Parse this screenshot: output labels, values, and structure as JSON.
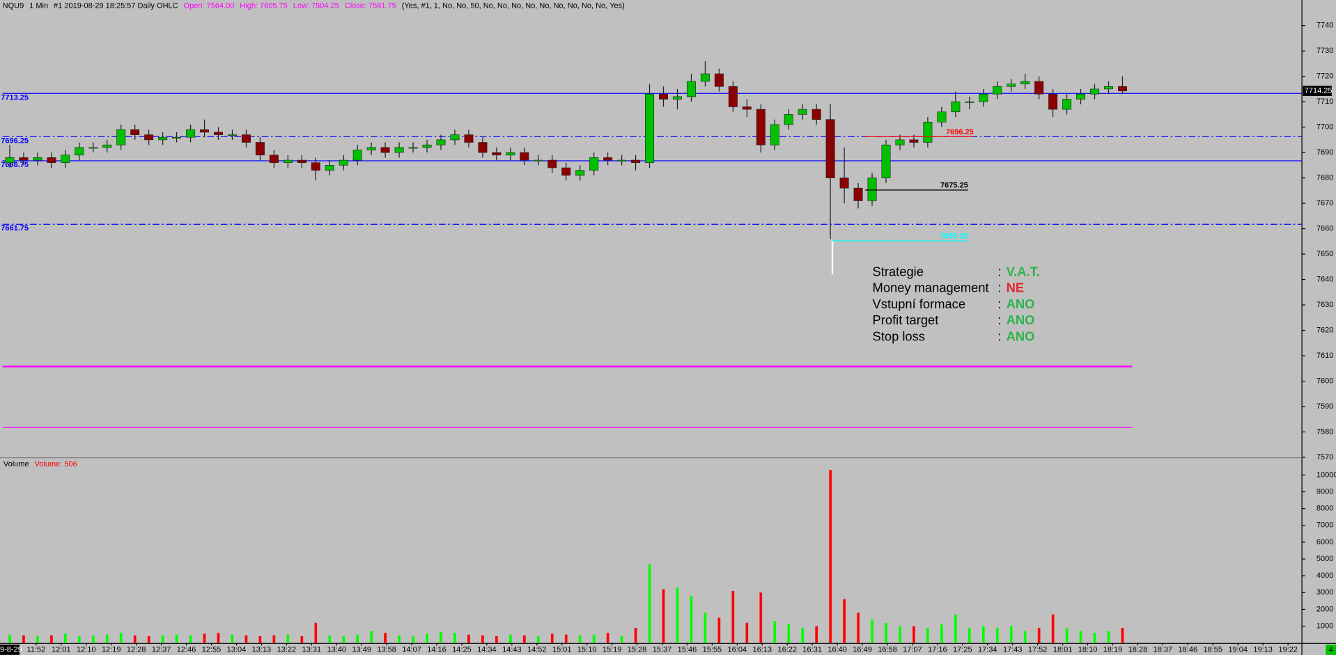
{
  "header": {
    "symbol": "NQU9",
    "interval": "1 Min",
    "info": "#1 2019-08-29 18:25:57 Daily OHLC",
    "ohlc": [
      "Open: 7564.00",
      "High: 7605.75",
      "Low: 7504.25",
      "Close: 7581.75"
    ],
    "params": "(Yes, #1, 1, No, No, 50, No, No, No, No, No, No, No, No, No, Yes)",
    "date_label": "9-8-29",
    "corner_badge": "4"
  },
  "chart_data": {
    "type": "candlestick",
    "x": [
      "11:40",
      "11:45",
      "11:50",
      "11:55",
      "12:00",
      "12:05",
      "12:10",
      "12:15",
      "12:20",
      "12:25",
      "12:30",
      "12:35",
      "12:40",
      "12:45",
      "12:50",
      "12:55",
      "13:00",
      "13:05",
      "13:10",
      "13:15",
      "13:20",
      "13:25",
      "13:30",
      "13:35",
      "13:40",
      "13:45",
      "13:50",
      "13:55",
      "14:00",
      "14:05",
      "14:10",
      "14:15",
      "14:20",
      "14:25",
      "14:30",
      "14:35",
      "14:40",
      "14:45",
      "14:50",
      "14:55",
      "15:00",
      "15:05",
      "15:10",
      "15:15",
      "15:20",
      "15:25",
      "15:30",
      "15:35",
      "15:40",
      "15:45",
      "15:50",
      "15:55",
      "16:00",
      "16:05",
      "16:10",
      "16:15",
      "16:20",
      "16:25",
      "16:30",
      "16:35",
      "16:40",
      "16:45",
      "16:50",
      "16:55",
      "17:00",
      "17:05",
      "17:10",
      "17:15",
      "17:20",
      "17:25",
      "17:30",
      "17:35",
      "17:40",
      "17:45",
      "17:50",
      "17:55",
      "18:00",
      "18:05",
      "18:10",
      "18:15",
      "18:20"
    ],
    "open": [
      7686,
      7688,
      7687,
      7688,
      7686,
      7689,
      7692,
      7692,
      7693,
      7699,
      7697,
      7695,
      7696,
      7696,
      7699,
      7698,
      7697,
      7697,
      7694,
      7689,
      7686,
      7687,
      7686,
      7683,
      7685,
      7687,
      7691,
      7692,
      7690,
      7692,
      7692,
      7693,
      7695,
      7697,
      7694,
      7690,
      7689,
      7690,
      7687,
      7687,
      7684,
      7681,
      7683,
      7688,
      7687,
      7687,
      7686,
      7713,
      7711,
      7712,
      7718,
      7721,
      7716,
      7708,
      7707,
      7693,
      7701,
      7705,
      7707,
      7703,
      7680,
      7676,
      7671,
      7680,
      7693,
      7695,
      7694,
      7702,
      7706,
      7710,
      7710,
      7713,
      7716,
      7717,
      7718,
      7713,
      7707,
      7711,
      7713,
      7715,
      7716
    ],
    "high": [
      7693,
      7690,
      7690,
      7690,
      7691,
      7694,
      7694,
      7695,
      7701,
      7701,
      7699,
      7698,
      7698,
      7701,
      7703,
      7700,
      7699,
      7699,
      7696,
      7691,
      7689,
      7689,
      7688,
      7687,
      7689,
      7693,
      7694,
      7694,
      7694,
      7694,
      7695,
      7697,
      7699,
      7699,
      7696,
      7692,
      7692,
      7692,
      7689,
      7689,
      7686,
      7685,
      7690,
      7690,
      7689,
      7689,
      7717,
      7716,
      7715,
      7721,
      7726,
      7723,
      7718,
      7711,
      7709,
      7703,
      7707,
      7709,
      7709,
      7709,
      7692,
      7678,
      7682,
      7695,
      7697,
      7697,
      7704,
      7708,
      7714,
      7712,
      7715,
      7718,
      7719,
      7721,
      7720,
      7715,
      7713,
      7715,
      7717,
      7718,
      7720
    ],
    "low": [
      7684,
      7685,
      7685,
      7684,
      7684,
      7687,
      7690,
      7690,
      7691,
      7695,
      7693,
      7693,
      7694,
      7694,
      7696,
      7695,
      7695,
      7692,
      7687,
      7684,
      7684,
      7684,
      7679,
      7681,
      7683,
      7685,
      7689,
      7688,
      7688,
      7690,
      7690,
      7691,
      7693,
      7692,
      7688,
      7687,
      7687,
      7685,
      7685,
      7682,
      7679,
      7679,
      7681,
      7685,
      7685,
      7683,
      7684,
      7708,
      7707,
      7710,
      7716,
      7714,
      7706,
      7704,
      7690,
      7691,
      7699,
      7703,
      7701,
      7656,
      7670,
      7668,
      7669,
      7678,
      7691,
      7692,
      7692,
      7700,
      7704,
      7707,
      7708,
      7711,
      7714,
      7715,
      7711,
      7704,
      7705,
      7709,
      7711,
      7713,
      7713
    ],
    "close": [
      7688,
      7687,
      7688,
      7686,
      7689,
      7692,
      7692,
      7693,
      7699,
      7697,
      7695,
      7696,
      7696,
      7699,
      7698,
      7697,
      7697,
      7694,
      7689,
      7686,
      7687,
      7686,
      7683,
      7685,
      7687,
      7691,
      7692,
      7690,
      7692,
      7692,
      7693,
      7695,
      7697,
      7694,
      7690,
      7689,
      7690,
      7687,
      7687,
      7684,
      7681,
      7683,
      7688,
      7687,
      7687,
      7686,
      7713,
      7711,
      7712,
      7718,
      7721,
      7716,
      7708,
      7707,
      7693,
      7701,
      7705,
      7707,
      7703,
      7680,
      7676,
      7671,
      7680,
      7693,
      7695,
      7694,
      7702,
      7706,
      7710,
      7710,
      7713,
      7716,
      7717,
      7718,
      7713,
      7707,
      7711,
      7713,
      7715,
      7716,
      7714.25
    ],
    "up_color": "#00c000",
    "down_color": "#8b0000",
    "xlim": [
      "11:39",
      "19:27"
    ],
    "xticks": [
      "11:52",
      "12:01",
      "12:10",
      "12:19",
      "12:28",
      "12:37",
      "12:46",
      "12:55",
      "13:04",
      "13:13",
      "13:22",
      "13:31",
      "13:40",
      "13:49",
      "13:58",
      "14:07",
      "14:16",
      "14:25",
      "14:34",
      "14:43",
      "14:52",
      "15:01",
      "15:10",
      "15:19",
      "15:28",
      "15:37",
      "15:46",
      "15:55",
      "16:04",
      "16:13",
      "16:22",
      "16:31",
      "16:40",
      "16:49",
      "16:58",
      "17:07",
      "17:16",
      "17:25",
      "17:34",
      "17:43",
      "17:52",
      "18:01",
      "18:10",
      "18:19",
      "18:28",
      "18:37",
      "18:46",
      "18:55",
      "19:04",
      "19:13",
      "19:22"
    ],
    "ylim": [
      7570,
      7750
    ],
    "yticks": [
      7570,
      7580,
      7590,
      7600,
      7610,
      7620,
      7630,
      7640,
      7650,
      7660,
      7670,
      7680,
      7690,
      7700,
      7710,
      7720,
      7730,
      7740
    ],
    "levels": [
      {
        "value": 7713.25,
        "color": "#0000ff",
        "style": "solid",
        "show_label": true
      },
      {
        "value": 7696.25,
        "color": "#0000ff",
        "style": "dashdot",
        "show_label": true
      },
      {
        "value": 7686.75,
        "color": "#0000ff",
        "style": "solid",
        "show_label": true
      },
      {
        "value": 7661.75,
        "color": "#0000ff",
        "style": "dashdot",
        "show_label": true
      },
      {
        "value": 7605.75,
        "color": "#ff00ff",
        "style": "thick",
        "show_label": false,
        "to": "18:26"
      },
      {
        "value": 7581.75,
        "color": "#ff00ff",
        "style": "solid",
        "show_label": false,
        "to": "18:26"
      }
    ],
    "segments": [
      {
        "value": 7696.25,
        "color": "#ff0000",
        "from": "16:50",
        "to": "17:29"
      },
      {
        "value": 7675.25,
        "color": "#000000",
        "from": "16:50",
        "to": "17:27"
      },
      {
        "value": 7655.25,
        "color": "#00ffff",
        "from": "16:38",
        "to": "17:27"
      }
    ],
    "volume": {
      "title": "Volume",
      "label": "Volume: 506",
      "up_color": "#00ff00",
      "down_color": "#ff0000",
      "values": [
        500,
        450,
        400,
        450,
        550,
        400,
        450,
        500,
        600,
        450,
        400,
        450,
        500,
        450,
        550,
        600,
        500,
        450,
        400,
        450,
        500,
        400,
        1200,
        450,
        400,
        500,
        700,
        600,
        450,
        400,
        550,
        650,
        600,
        500,
        450,
        400,
        500,
        450,
        400,
        550,
        500,
        450,
        500,
        600,
        400,
        900,
        4700,
        3200,
        3300,
        2800,
        1800,
        1500,
        3100,
        1200,
        3000,
        1300,
        1100,
        900,
        1000,
        10300,
        2600,
        1800,
        1400,
        1200,
        1000,
        1000,
        900,
        1100,
        1700,
        900,
        1000,
        900,
        1000,
        700,
        900,
        1700,
        900,
        700,
        600,
        700,
        900
      ],
      "ylim": [
        0,
        11000
      ],
      "yticks": [
        1000,
        2000,
        3000,
        4000,
        5000,
        6000,
        7000,
        8000,
        9000,
        10000
      ]
    }
  },
  "strategy_box": {
    "rows": [
      {
        "label": "Strategie",
        "sep": ":",
        "value": "V.A.T.",
        "color": "#2db34a"
      },
      {
        "label": "Money management",
        "sep": ":",
        "value": "NE",
        "color": "#e8202a"
      },
      {
        "label": "Vstupní formace",
        "sep": ":",
        "value": "ANO",
        "color": "#2db34a"
      },
      {
        "label": "Profit target",
        "sep": ":",
        "value": "ANO",
        "color": "#2db34a"
      },
      {
        "label": "Stop loss",
        "sep": ":",
        "value": "ANO",
        "color": "#2db34a"
      }
    ]
  }
}
